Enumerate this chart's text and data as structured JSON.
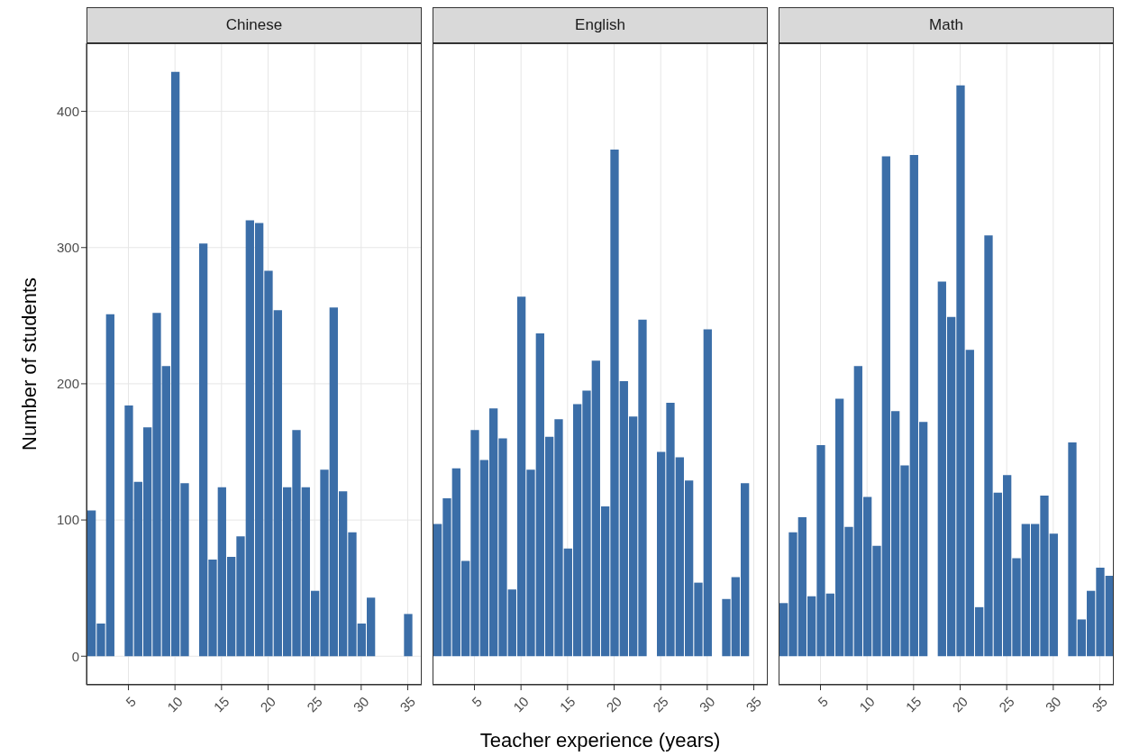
{
  "chart_data": [
    {
      "type": "bar",
      "title": "Chinese",
      "ylabel": "Number of students",
      "color": "#3b6ea8",
      "grid": true,
      "xlim": [
        0.5,
        36.5
      ],
      "xticks": [
        5,
        10,
        15,
        20,
        25,
        30,
        35
      ],
      "ylim": [
        -21,
        450
      ],
      "yticks": [
        0,
        100,
        200,
        300,
        400
      ],
      "x": [
        1,
        2,
        3,
        4,
        5,
        6,
        7,
        8,
        9,
        10,
        11,
        12,
        13,
        14,
        15,
        16,
        17,
        18,
        19,
        20,
        21,
        22,
        23,
        24,
        25,
        26,
        27,
        28,
        29,
        30,
        31,
        32,
        33,
        34,
        35
      ],
      "values": [
        107,
        24,
        251,
        null,
        184,
        128,
        168,
        252,
        213,
        429,
        127,
        null,
        303,
        71,
        124,
        73,
        88,
        320,
        318,
        283,
        254,
        124,
        166,
        124,
        48,
        137,
        256,
        121,
        91,
        24,
        43,
        null,
        null,
        null,
        31
      ]
    },
    {
      "type": "bar",
      "title": "English",
      "xlabel": "Teacher experience (years)",
      "color": "#3b6ea8",
      "grid": true,
      "tick_labels": "x",
      "xlim": [
        0.5,
        36.5
      ],
      "xticks": [
        5,
        10,
        15,
        20,
        25,
        30,
        35
      ],
      "ylim": [
        -21,
        450
      ],
      "yticks": [
        0,
        100,
        200,
        300,
        400
      ],
      "x": [
        1,
        2,
        3,
        4,
        5,
        6,
        7,
        8,
        9,
        10,
        11,
        12,
        13,
        14,
        15,
        16,
        17,
        18,
        19,
        20,
        21,
        22,
        23,
        24,
        25,
        26,
        27,
        28,
        29,
        30,
        31,
        32,
        33,
        34
      ],
      "values": [
        97,
        116,
        138,
        70,
        166,
        144,
        182,
        160,
        49,
        264,
        137,
        237,
        161,
        174,
        79,
        185,
        195,
        217,
        110,
        372,
        202,
        176,
        247,
        null,
        150,
        186,
        146,
        129,
        54,
        240,
        null,
        42,
        58,
        127
      ]
    },
    {
      "type": "bar",
      "title": "Math",
      "color": "#3b6ea8",
      "grid": true,
      "tick_labels": "x",
      "xlim": [
        0.5,
        36.5
      ],
      "xticks": [
        5,
        10,
        15,
        20,
        25,
        30,
        35
      ],
      "ylim": [
        -21,
        450
      ],
      "yticks": [
        0,
        100,
        200,
        300,
        400
      ],
      "x": [
        1,
        2,
        3,
        4,
        5,
        6,
        7,
        8,
        9,
        10,
        11,
        12,
        13,
        14,
        15,
        16,
        17,
        18,
        19,
        20,
        21,
        22,
        23,
        24,
        25,
        26,
        27,
        28,
        29,
        30,
        31,
        32,
        33,
        34,
        35,
        36
      ],
      "values": [
        39,
        91,
        102,
        44,
        155,
        46,
        189,
        95,
        213,
        117,
        81,
        367,
        180,
        140,
        368,
        172,
        null,
        275,
        249,
        419,
        225,
        36,
        309,
        120,
        133,
        72,
        97,
        97,
        118,
        90,
        null,
        157,
        27,
        48,
        65,
        59
      ]
    }
  ]
}
